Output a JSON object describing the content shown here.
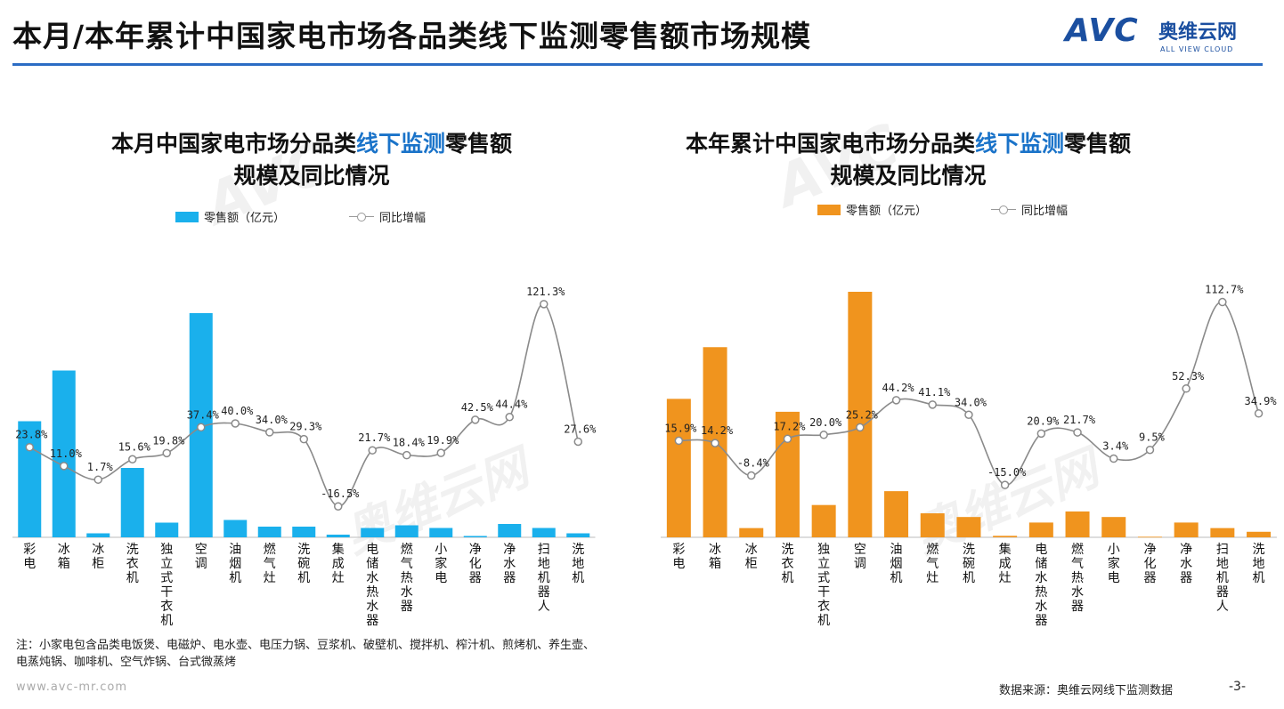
{
  "header": {
    "title": "本月/本年累计中国家电市场各品类线下监测零售额市场规模",
    "logo_mark": "AVC",
    "logo_cn": "奥维云网",
    "logo_en": "ALL VIEW CLOUD"
  },
  "colors": {
    "accent_line": "#2b6cc4",
    "left_bar": "#1ab0ec",
    "right_bar": "#f0941e",
    "yoy_line": "#8a8a8a"
  },
  "chart_data": [
    {
      "type": "bar",
      "title_parts": [
        "本月中国家电市场分品类",
        "线下监测",
        "零售额"
      ],
      "title_line2": "规模及同比情况",
      "legend": {
        "bar": "零售额（亿元）",
        "line": "同比增幅"
      },
      "categories": [
        "彩电",
        "冰箱",
        "冰柜",
        "洗衣机",
        "独立式干衣机",
        "空调",
        "油烟机",
        "燃气灶",
        "洗碗机",
        "集成灶",
        "电储水热水器",
        "燃气热水器",
        "小家电",
        "净化器",
        "净水器",
        "扫地机器人",
        "洗地机"
      ],
      "series": [
        {
          "values": [
            87,
            125,
            3,
            52,
            11,
            168,
            13,
            8,
            8,
            2,
            7,
            9,
            7,
            1,
            10,
            7,
            3
          ]
        },
        {
          "values": [
            23.8,
            11.0,
            1.7,
            15.6,
            19.8,
            37.4,
            40.0,
            34.0,
            29.3,
            -16.5,
            21.7,
            18.4,
            19.9,
            42.5,
            44.4,
            121.3,
            27.6
          ],
          "value_labels": [
            "23.8%",
            "11.0%",
            "1.7%",
            "15.6%",
            "19.8%",
            "37.4%",
            "40.0%",
            "34.0%",
            "29.3%",
            "-16.5%",
            "21.7%",
            "18.4%",
            "19.9%",
            "42.5%",
            "44.4%",
            "121.3%",
            "27.6%"
          ]
        }
      ]
    },
    {
      "type": "bar",
      "title_parts": [
        "本年累计中国家电市场分品类",
        "线下监测",
        "零售额"
      ],
      "title_line2": "规模及同比情况",
      "legend": {
        "bar": "零售额（亿元）",
        "line": "同比增幅"
      },
      "categories": [
        "彩电",
        "冰箱",
        "冰柜",
        "洗衣机",
        "独立式干衣机",
        "空调",
        "油烟机",
        "燃气灶",
        "洗碗机",
        "集成灶",
        "电储水热水器",
        "燃气热水器",
        "小家电",
        "净化器",
        "净水器",
        "扫地机器人",
        "洗地机"
      ],
      "series": [
        {
          "values": [
            750,
            1030,
            50,
            680,
            175,
            1330,
            250,
            130,
            110,
            8,
            80,
            140,
            110,
            3,
            80,
            50,
            30
          ]
        },
        {
          "values": [
            15.9,
            14.2,
            -8.4,
            17.2,
            20.0,
            25.2,
            44.2,
            41.1,
            34.0,
            -15.0,
            20.9,
            21.7,
            3.4,
            9.5,
            52.3,
            112.7,
            34.9
          ],
          "value_labels": [
            "15.9%",
            "14.2%",
            "-8.4%",
            "17.2%",
            "20.0%",
            "25.2%",
            "44.2%",
            "41.1%",
            "34.0%",
            "-15.0%",
            "20.9%",
            "21.7%",
            "3.4%",
            "9.5%",
            "52.3%",
            "112.7%",
            "34.9%"
          ]
        }
      ]
    }
  ],
  "footer": {
    "note": "注：小家电包含品类电饭煲、电磁炉、电水壶、电压力锅、豆浆机、破壁机、搅拌机、榨汁机、煎烤机、养生壶、电蒸炖锅、咖啡机、空气炸锅、台式微蒸烤",
    "website": "www.avc-mr.com",
    "source": "数据来源：奥维云网线下监测数据",
    "page": "-3-"
  }
}
